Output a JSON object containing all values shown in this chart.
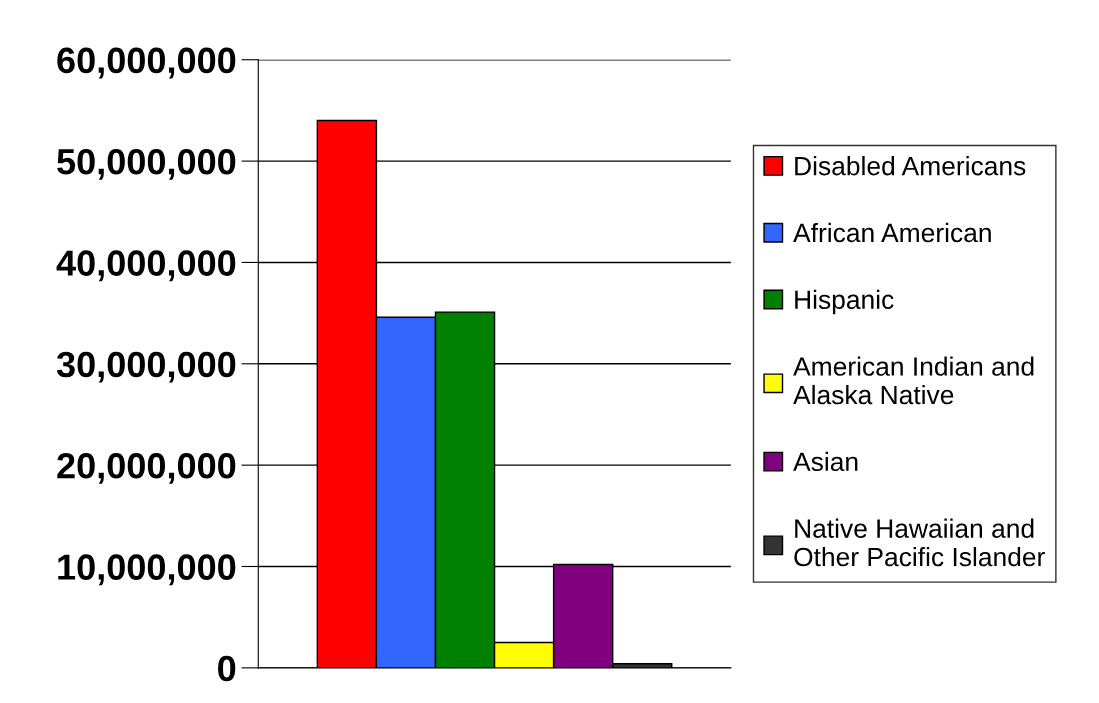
{
  "chart_data": {
    "type": "bar",
    "categories": [
      null
    ],
    "series": [
      {
        "name": "Disabled Americans",
        "color": "#ff0000",
        "values": [
          54000000
        ]
      },
      {
        "name": "African American",
        "color": "#3366ff",
        "values": [
          34600000
        ]
      },
      {
        "name": "Hispanic",
        "color": "#008000",
        "values": [
          35100000
        ]
      },
      {
        "name": "American Indian and Alaska Native",
        "color": "#ffff00",
        "values": [
          2500000
        ]
      },
      {
        "name": "Asian",
        "color": "#800080",
        "values": [
          10200000
        ]
      },
      {
        "name": "Native Hawaiian and Other Pacific Islander",
        "color": "#333333",
        "values": [
          400000
        ]
      }
    ],
    "ylim": [
      0,
      60000000
    ],
    "yticks": [
      {
        "value": 0,
        "label": "0"
      },
      {
        "value": 10000000,
        "label": "10,000,000"
      },
      {
        "value": 20000000,
        "label": "20,000,000"
      },
      {
        "value": 30000000,
        "label": "30,000,000"
      },
      {
        "value": 40000000,
        "label": "40,000,000"
      },
      {
        "value": 50000000,
        "label": "50,000,000"
      },
      {
        "value": 60000000,
        "label": "60,000,000"
      }
    ],
    "grid": "y",
    "legend": "right",
    "tick_labels": "y"
  }
}
